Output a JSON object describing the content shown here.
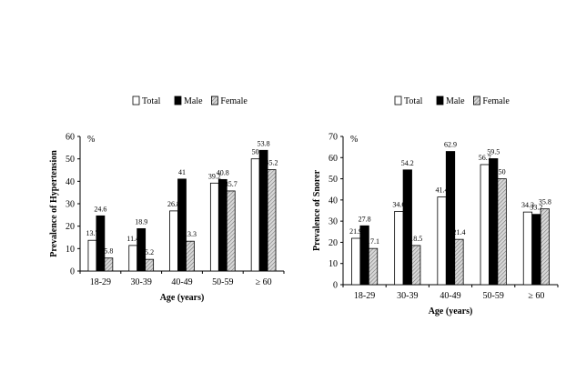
{
  "chart_data": [
    {
      "type": "bar",
      "categories": [
        "18-29",
        "30-39",
        "40-49",
        "50-59",
        "≥ 60"
      ],
      "series": [
        {
          "name": "Total",
          "values": [
            13.7,
            11.4,
            26.8,
            39.2,
            50
          ]
        },
        {
          "name": "Male",
          "values": [
            24.6,
            18.9,
            41,
            40.8,
            53.8
          ]
        },
        {
          "name": "Female",
          "values": [
            5.8,
            5.2,
            13.3,
            35.7,
            45.2
          ]
        }
      ],
      "value_labels": [
        [
          "13.7",
          "11.4",
          "26.8",
          "39.2",
          "50"
        ],
        [
          "24.6",
          "18.9",
          "41",
          "40.8",
          "53.8"
        ],
        [
          "5.8",
          "5.2",
          "13.3",
          "35.7",
          "45.2"
        ]
      ],
      "unit_label": "%",
      "xlabel": "Age (years)",
      "ylabel": "Prevalence of Hypertension",
      "ylim": [
        0,
        60
      ],
      "yticks": [
        0,
        10,
        20,
        30,
        40,
        50,
        60
      ],
      "legend_position": "top"
    },
    {
      "type": "bar",
      "categories": [
        "18-29",
        "30-39",
        "40-49",
        "50-59",
        "≥ 60"
      ],
      "series": [
        {
          "name": "Total",
          "values": [
            21.9,
            34.6,
            41.4,
            56.7,
            34.3
          ]
        },
        {
          "name": "Male",
          "values": [
            27.8,
            54.2,
            62.9,
            59.5,
            33.2
          ]
        },
        {
          "name": "Female",
          "values": [
            17.1,
            18.5,
            21.4,
            50,
            35.8
          ]
        }
      ],
      "value_labels": [
        [
          "21.9",
          "34.6",
          "41.4",
          "56.7",
          "34.3"
        ],
        [
          "27.8",
          "54.2",
          "62.9",
          "59.5",
          "33.2"
        ],
        [
          "17.1",
          "18.5",
          "21.4",
          "50",
          "35.8"
        ]
      ],
      "unit_label": "%",
      "xlabel": "Age (years)",
      "ylabel": "Prevalence of Snorer",
      "ylim": [
        0,
        70
      ],
      "yticks": [
        0,
        10,
        20,
        30,
        40,
        50,
        60,
        70
      ],
      "legend_position": "top"
    }
  ]
}
